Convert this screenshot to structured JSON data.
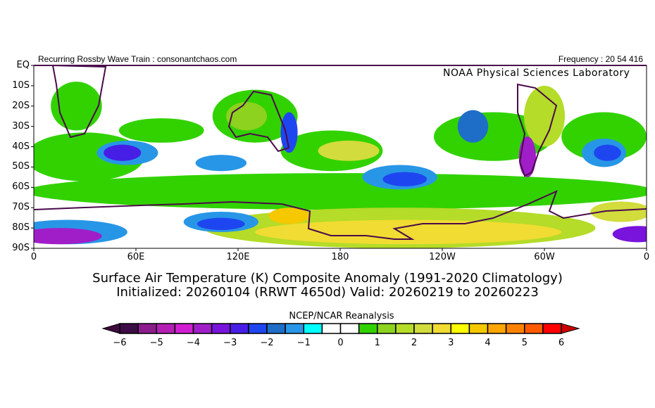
{
  "header": {
    "left": "Recurring Rossby Wave Train : consonantchaos.com",
    "right": "Frequency : 20 54 416",
    "lab": "NOAA Physical Sciences Laboratory"
  },
  "chart_data": {
    "type": "heatmap",
    "title": "Surface Air Temperature (K) Composite Anomaly (1991-2020 Climatology)",
    "subtitle": "Initialized: 20260104 (RRWT 4650d) Valid: 20260219 to 20260223",
    "source": "NCEP/NCAR Reanalysis",
    "lat_range": [
      -90,
      0
    ],
    "lon_range": [
      0,
      360
    ],
    "lat_ticks": [
      "EQ",
      "10S",
      "20S",
      "30S",
      "40S",
      "50S",
      "60S",
      "70S",
      "80S",
      "90S"
    ],
    "lon_ticks": [
      "0",
      "60E",
      "120E",
      "180",
      "120W",
      "60W",
      "0"
    ],
    "colorbar": {
      "levels": [
        -6,
        -5.5,
        -5,
        -4.5,
        -4,
        -3.5,
        -3,
        -2.5,
        -2,
        -1.5,
        -1,
        -0.5,
        0,
        0.5,
        1,
        1.5,
        2,
        2.5,
        3,
        3.5,
        4,
        4.5,
        5,
        5.5,
        6
      ],
      "tick_labels": [
        "-6",
        "-5",
        "-4",
        "-3",
        "-2",
        "-1",
        "0",
        "1",
        "2",
        "3",
        "4",
        "5",
        "6"
      ],
      "colors": [
        "#3c0c44",
        "#8c1c8c",
        "#b41eb4",
        "#d21ed2",
        "#a01ec8",
        "#7814dc",
        "#461ee6",
        "#1e46f0",
        "#1e6ec8",
        "#2896e6",
        "#00ffff",
        "#ffffff",
        "#ffffff",
        "#32d200",
        "#8cd21e",
        "#b4dc28",
        "#d2dc3c",
        "#f0dc32",
        "#ffff00",
        "#f5c800",
        "#ffa500",
        "#ff8200",
        "#ff5a00",
        "#ff0000"
      ],
      "under_color": "#3c0a3c",
      "over_color": "#c80000"
    },
    "anomalies": [
      {
        "lon": 180,
        "lat": -62,
        "rlon": 185,
        "rlat": 9,
        "value": 0.8
      },
      {
        "lon": 30,
        "lat": -45,
        "rlon": 35,
        "rlat": 12,
        "value": 0.8
      },
      {
        "lon": 25,
        "lat": -20,
        "rlon": 15,
        "rlat": 12,
        "value": 0.8
      },
      {
        "lon": 75,
        "lat": -32,
        "rlon": 25,
        "rlat": 6,
        "value": 0.8
      },
      {
        "lon": 130,
        "lat": -25,
        "rlon": 25,
        "rlat": 13,
        "value": 0.8
      },
      {
        "lon": 175,
        "lat": -42,
        "rlon": 30,
        "rlat": 10,
        "value": 0.8
      },
      {
        "lon": 270,
        "lat": -35,
        "rlon": 35,
        "rlat": 12,
        "value": 0.8
      },
      {
        "lon": 335,
        "lat": -35,
        "rlon": 25,
        "rlat": 12,
        "value": 0.8
      },
      {
        "lon": 300,
        "lat": -25,
        "rlon": 12,
        "rlat": 15,
        "value": 1.8
      },
      {
        "lon": 185,
        "lat": -42,
        "rlon": 18,
        "rlat": 5,
        "value": 2.2
      },
      {
        "lon": 125,
        "lat": -25,
        "rlon": 12,
        "rlat": 7,
        "value": 1.3
      },
      {
        "lon": 215,
        "lat": -80,
        "rlon": 115,
        "rlat": 10,
        "value": 1.8
      },
      {
        "lon": 220,
        "lat": -82,
        "rlon": 90,
        "rlat": 6,
        "value": 2.6
      },
      {
        "lon": 150,
        "lat": -74,
        "rlon": 12,
        "rlat": 4,
        "value": 3.8
      },
      {
        "lon": 345,
        "lat": -72,
        "rlon": 18,
        "rlat": 5,
        "value": 2.2
      },
      {
        "lon": 20,
        "lat": -82,
        "rlon": 35,
        "rlat": 6,
        "value": -1.3
      },
      {
        "lon": 15,
        "lat": -84,
        "rlon": 25,
        "rlat": 4,
        "value": -3.8
      },
      {
        "lon": 355,
        "lat": -83,
        "rlon": 15,
        "rlat": 4,
        "value": -3.5
      },
      {
        "lon": 55,
        "lat": -43,
        "rlon": 18,
        "rlat": 6,
        "value": -1.3
      },
      {
        "lon": 52,
        "lat": -43,
        "rlon": 11,
        "rlat": 4,
        "value": -2.7
      },
      {
        "lon": 110,
        "lat": -48,
        "rlon": 15,
        "rlat": 4,
        "value": -1.2
      },
      {
        "lon": 110,
        "lat": -77,
        "rlon": 22,
        "rlat": 5,
        "value": -1.3
      },
      {
        "lon": 110,
        "lat": -78,
        "rlon": 14,
        "rlat": 3,
        "value": -2.2
      },
      {
        "lon": 150,
        "lat": -33,
        "rlon": 5,
        "rlat": 10,
        "value": -2.3
      },
      {
        "lon": 215,
        "lat": -55,
        "rlon": 22,
        "rlat": 6,
        "value": -1.2
      },
      {
        "lon": 218,
        "lat": -56,
        "rlon": 13,
        "rlat": 3.5,
        "value": -2.2
      },
      {
        "lon": 258,
        "lat": -30,
        "rlon": 9,
        "rlat": 8,
        "value": -2.0
      },
      {
        "lon": 290,
        "lat": -45,
        "rlon": 5,
        "rlat": 10,
        "value": -3.8
      },
      {
        "lon": 335,
        "lat": -43,
        "rlon": 13,
        "rlat": 7,
        "value": -1.2
      },
      {
        "lon": 337,
        "lat": -43,
        "rlon": 8,
        "rlat": 4,
        "value": -2.2
      }
    ]
  }
}
